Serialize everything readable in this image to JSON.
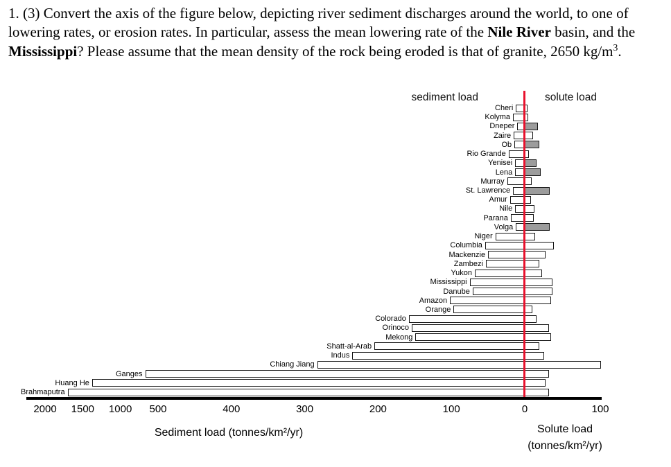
{
  "question": {
    "segments": [
      {
        "text": "1.  (3) Convert the axis of the figure below, depicting river sediment discharges around the world, to one of lowering rates, or erosion rates.  In particular, assess the mean lowering rate of the "
      },
      {
        "text": "Nile River",
        "bold": true
      },
      {
        "text": " basin, and the "
      },
      {
        "text": "Mississippi",
        "bold": true
      },
      {
        "text": "?  Please assume that the mean density of the rock being eroded is that of granite, 2650 kg/m"
      },
      {
        "text": "3",
        "superscript": true
      },
      {
        "text": "."
      }
    ]
  },
  "chart": {
    "sediment_header": "sediment load",
    "solute_header": "solute load",
    "xlabel_left": "Sediment load (tonnes/km²/yr)",
    "xlabel_right_line1": "Solute load",
    "xlabel_right_line2": "(tonnes/km²/yr)"
  },
  "chart_data": {
    "type": "bar",
    "orientation": "horizontal-diverging",
    "title": "",
    "left_axis_label": "Sediment load (tonnes/km²/yr)",
    "right_axis_label": "Solute load (tonnes/km²/yr)",
    "left_ticks": [
      2000,
      1500,
      1000,
      500,
      400,
      300,
      200,
      100,
      0
    ],
    "right_ticks": [
      100
    ],
    "axis_note": "left (sediment) axis is non-linear: segment 0-500 is expanded, segment 500-2000 is compressed; solute axis 0-100 extends right of the red zero line",
    "colors": {
      "zero_line_red": "#e8112d",
      "solute_gray_fill": "#9c9c9c",
      "bar_fill": "#ffffff"
    },
    "units": "tonnes/km²/yr",
    "rivers": [
      {
        "name": "Cheri",
        "sediment": 12,
        "solute": 2,
        "solute_gray": false
      },
      {
        "name": "Kolyma",
        "sediment": 16,
        "solute": 3,
        "solute_gray": false
      },
      {
        "name": "Dneper",
        "sediment": 10,
        "solute": 16,
        "solute_gray": true
      },
      {
        "name": "Zaire",
        "sediment": 15,
        "solute": 9,
        "solute_gray": false
      },
      {
        "name": "Ob",
        "sediment": 14,
        "solute": 17,
        "solute_gray": true
      },
      {
        "name": "Rio Grande",
        "sediment": 22,
        "solute": 4,
        "solute_gray": false
      },
      {
        "name": "Yenisei",
        "sediment": 13,
        "solute": 14,
        "solute_gray": true
      },
      {
        "name": "Lena",
        "sediment": 13,
        "solute": 19,
        "solute_gray": true
      },
      {
        "name": "Murray",
        "sediment": 24,
        "solute": 7,
        "solute_gray": false
      },
      {
        "name": "St. Lawrence",
        "sediment": 16,
        "solute": 31,
        "solute_gray": true
      },
      {
        "name": "Amur",
        "sediment": 20,
        "solute": 6,
        "solute_gray": false
      },
      {
        "name": "Nile",
        "sediment": 13,
        "solute": 11,
        "solute_gray": false
      },
      {
        "name": "Parana",
        "sediment": 19,
        "solute": 10,
        "solute_gray": false
      },
      {
        "name": "Volga",
        "sediment": 12,
        "solute": 31,
        "solute_gray": true
      },
      {
        "name": "Niger",
        "sediment": 40,
        "solute": 12,
        "solute_gray": false
      },
      {
        "name": "Columbia",
        "sediment": 54,
        "solute": 37,
        "solute_gray": false
      },
      {
        "name": "Mackenzie",
        "sediment": 50,
        "solute": 26,
        "solute_gray": false
      },
      {
        "name": "Zambezi",
        "sediment": 53,
        "solute": 17,
        "solute_gray": false
      },
      {
        "name": "Yukon",
        "sediment": 68,
        "solute": 21,
        "solute_gray": false
      },
      {
        "name": "Mississippi",
        "sediment": 75,
        "solute": 35,
        "solute_gray": false
      },
      {
        "name": "Danube",
        "sediment": 71,
        "solute": 35,
        "solute_gray": false
      },
      {
        "name": "Amazon",
        "sediment": 102,
        "solute": 33,
        "solute_gray": false
      },
      {
        "name": "Orange",
        "sediment": 97,
        "solute": 8,
        "solute_gray": false
      },
      {
        "name": "Colorado",
        "sediment": 158,
        "solute": 14,
        "solute_gray": false
      },
      {
        "name": "Orinoco",
        "sediment": 154,
        "solute": 30,
        "solute_gray": false
      },
      {
        "name": "Mekong",
        "sediment": 149,
        "solute": 33,
        "solute_gray": false
      },
      {
        "name": "Shatt-al-Arab",
        "sediment": 205,
        "solute": 17,
        "solute_gray": false
      },
      {
        "name": "Indus",
        "sediment": 235,
        "solute": 24,
        "solute_gray": false
      },
      {
        "name": "Chiang Jiang",
        "sediment": 283,
        "solute": 99,
        "solute_gray": false
      },
      {
        "name": "Ganges",
        "sediment": 670,
        "solute": 30,
        "solute_gray": false
      },
      {
        "name": "Huang He",
        "sediment": 1375,
        "solute": 26,
        "solute_gray": false
      },
      {
        "name": "Brahmaputra",
        "sediment": 1700,
        "solute": 30,
        "solute_gray": false
      }
    ]
  }
}
